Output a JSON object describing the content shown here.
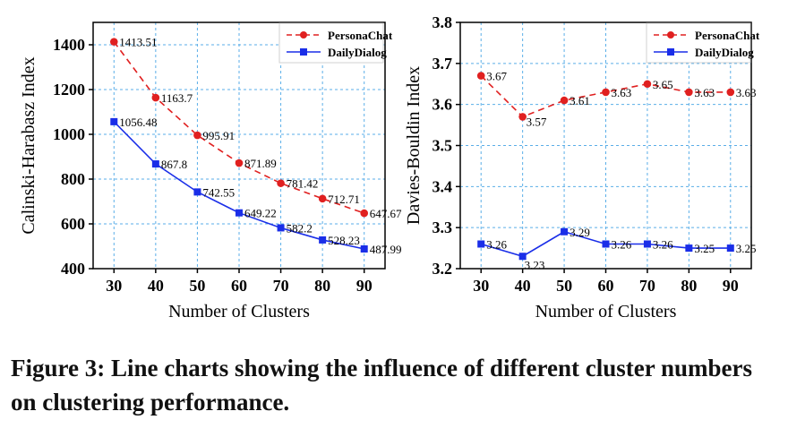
{
  "caption": "Figure 3: Line charts showing the influence of different cluster numbers on clustering performance.",
  "chart_data": [
    {
      "type": "line",
      "xlabel": "Number of Clusters",
      "ylabel": "Calinski-Harabasz Index",
      "x": [
        30,
        40,
        50,
        60,
        70,
        80,
        90
      ],
      "xlim": [
        25,
        95
      ],
      "ylim": [
        400,
        1500
      ],
      "yticks": [
        400,
        600,
        800,
        1000,
        1200,
        1400
      ],
      "grid": true,
      "legend_position": "top-right",
      "series": [
        {
          "name": "PersonaChat",
          "color": "#e02020",
          "style": "dashed",
          "marker": "circle",
          "values": [
            1413.51,
            1163.7,
            995.91,
            871.89,
            781.42,
            712.71,
            647.67
          ],
          "labels": [
            "1413.51",
            "1163.7",
            "995.91",
            "871.89",
            "781.42",
            "712.71",
            "647.67"
          ]
        },
        {
          "name": "DailyDialog",
          "color": "#1a2ee8",
          "style": "solid",
          "marker": "square",
          "values": [
            1056.48,
            867.8,
            742.55,
            649.22,
            582.2,
            528.23,
            487.99
          ],
          "labels": [
            "1056.48",
            "867.8",
            "742.55",
            "649.22",
            "582.2",
            "528.23",
            "487.99"
          ]
        }
      ]
    },
    {
      "type": "line",
      "xlabel": "Number of Clusters",
      "ylabel": "Davies-Bouldin Index",
      "x": [
        30,
        40,
        50,
        60,
        70,
        80,
        90
      ],
      "xlim": [
        25,
        95
      ],
      "ylim": [
        3.2,
        3.8
      ],
      "yticks": [
        3.2,
        3.3,
        3.4,
        3.5,
        3.6,
        3.7,
        3.8
      ],
      "grid": true,
      "legend_position": "top-right",
      "series": [
        {
          "name": "PersonaChat",
          "color": "#e02020",
          "style": "dashed",
          "marker": "circle",
          "values": [
            3.67,
            3.57,
            3.61,
            3.63,
            3.65,
            3.63,
            3.63
          ],
          "labels": [
            "3.67",
            "3.57",
            "3.61",
            "3.63",
            "3.65",
            "3.63",
            "3.63"
          ]
        },
        {
          "name": "DailyDialog",
          "color": "#1a2ee8",
          "style": "solid",
          "marker": "square",
          "values": [
            3.26,
            3.23,
            3.29,
            3.26,
            3.26,
            3.25,
            3.25
          ],
          "labels": [
            "3.26",
            "3.23",
            "3.29",
            "3.26",
            "3.26",
            "3.25",
            "3.25"
          ]
        }
      ]
    }
  ]
}
